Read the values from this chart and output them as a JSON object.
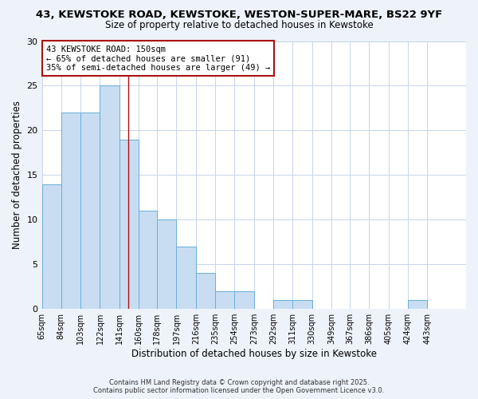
{
  "title_line1": "43, KEWSTOKE ROAD, KEWSTOKE, WESTON-SUPER-MARE, BS22 9YF",
  "title_line2": "Size of property relative to detached houses in Kewstoke",
  "xlabel": "Distribution of detached houses by size in Kewstoke",
  "ylabel": "Number of detached properties",
  "bin_labels": [
    "65sqm",
    "84sqm",
    "103sqm",
    "122sqm",
    "141sqm",
    "160sqm",
    "178sqm",
    "197sqm",
    "216sqm",
    "235sqm",
    "254sqm",
    "273sqm",
    "292sqm",
    "311sqm",
    "330sqm",
    "349sqm",
    "367sqm",
    "386sqm",
    "405sqm",
    "424sqm",
    "443sqm"
  ],
  "bin_edges": [
    65,
    84,
    103,
    122,
    141,
    160,
    178,
    197,
    216,
    235,
    254,
    273,
    292,
    311,
    330,
    349,
    367,
    386,
    405,
    424,
    443,
    462
  ],
  "counts": [
    14,
    22,
    22,
    25,
    19,
    11,
    10,
    7,
    4,
    2,
    2,
    0,
    1,
    1,
    0,
    0,
    0,
    0,
    0,
    1,
    0
  ],
  "bar_color": "#c8ddf2",
  "bar_edge_color": "#6aaed6",
  "vline_x": 150,
  "vline_color": "#aa1111",
  "annotation_title": "43 KEWSTOKE ROAD: 150sqm",
  "annotation_line2": "← 65% of detached houses are smaller (91)",
  "annotation_line3": "35% of semi-detached houses are larger (49) →",
  "annotation_box_edge": "#aa1111",
  "ylim": [
    0,
    30
  ],
  "yticks": [
    0,
    5,
    10,
    15,
    20,
    25,
    30
  ],
  "footer_line1": "Contains HM Land Registry data © Crown copyright and database right 2025.",
  "footer_line2": "Contains public sector information licensed under the Open Government Licence v3.0.",
  "bg_color": "#eef2fb",
  "plot_bg_color": "#ffffff",
  "grid_color": "#c5d5ea",
  "title_fontsize": 9.5,
  "subtitle_fontsize": 8.5
}
